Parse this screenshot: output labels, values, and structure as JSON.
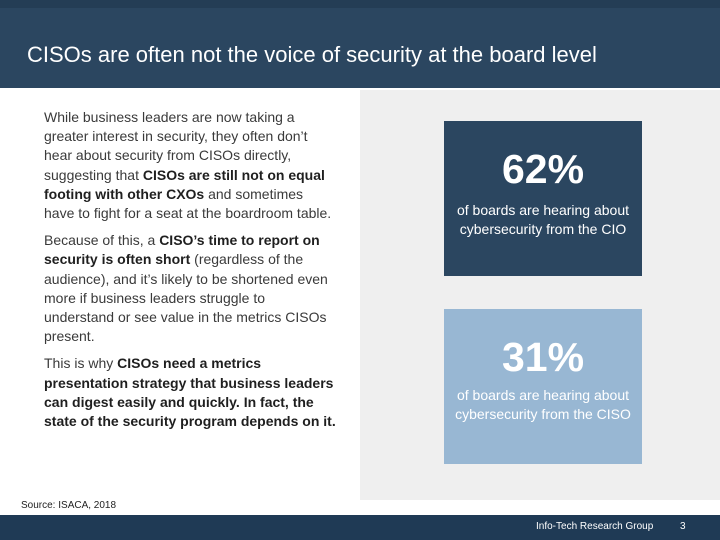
{
  "header": {
    "title": "CISOs are often not the voice of security at the board level"
  },
  "body": {
    "p1_start": "While business leaders are now taking a greater interest in security, they often don’t hear about security from CISOs directly, suggesting that ",
    "p1_bold": "CISOs are still not on equal footing with other CXOs",
    "p1_end": " and sometimes have to fight for a seat at the boardroom table.",
    "p2_start": "Because of this, a ",
    "p2_bold": "CISO’s time to report on security is often short",
    "p2_end": " (regardless of the audience), and it’s likely to be shortened even more if business leaders struggle to understand or see value in the metrics CISOs present.",
    "p3_start": "This is why ",
    "p3_bold": "CISOs need a metrics presentation strategy that business leaders can digest easily and quickly. In fact, the state of the security program depends on it."
  },
  "stats": [
    {
      "value": "62%",
      "description": "of boards are hearing about cybersecurity from the CIO",
      "color": "#2b4660"
    },
    {
      "value": "31%",
      "description": "of boards are hearing about cybersecurity from the CISO",
      "color": "#98b7d3"
    }
  ],
  "source": "Source: ISACA, 2018",
  "footer": {
    "organization": "Info-Tech Research Group",
    "page_number": "3"
  }
}
